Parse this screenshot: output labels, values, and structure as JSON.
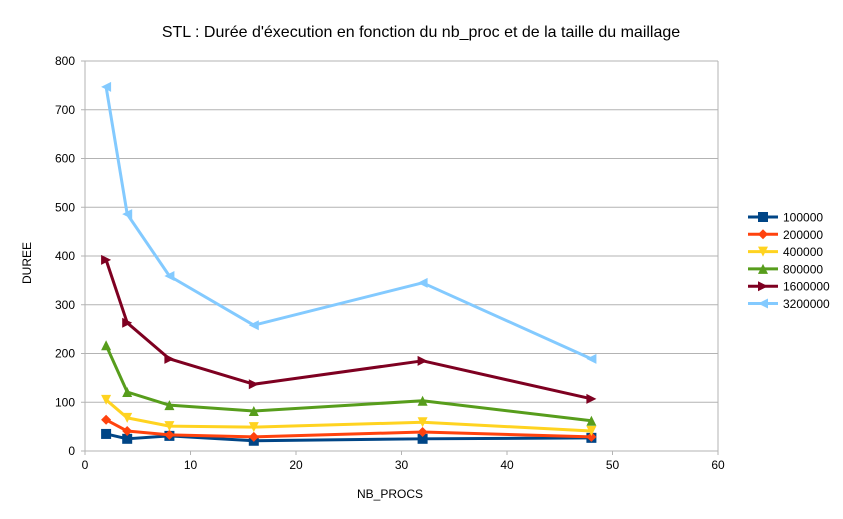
{
  "chart_data": {
    "type": "line",
    "title": "STL : Durée d'éxecution en fonction du nb_proc et de la taille du maillage",
    "xlabel": "NB_PROCS",
    "ylabel": "DUREE",
    "xlim": [
      0,
      60
    ],
    "ylim": [
      0,
      800
    ],
    "xticks": [
      0,
      10,
      20,
      30,
      40,
      50,
      60
    ],
    "yticks": [
      0,
      100,
      200,
      300,
      400,
      500,
      600,
      700,
      800
    ],
    "grid": "horizontal",
    "legend_position": "right",
    "x": [
      2,
      4,
      8,
      16,
      32,
      48
    ],
    "series": [
      {
        "name": "100000",
        "color": "#004586",
        "marker": "square",
        "values": [
          35,
          25,
          31,
          21,
          25,
          27
        ]
      },
      {
        "name": "200000",
        "color": "#ff420e",
        "marker": "diamond",
        "values": [
          64,
          41,
          33,
          29,
          39,
          29
        ]
      },
      {
        "name": "400000",
        "color": "#ffd320",
        "marker": "triangle-down",
        "values": [
          105,
          68,
          51,
          49,
          59,
          41
        ]
      },
      {
        "name": "800000",
        "color": "#579d1c",
        "marker": "triangle-up",
        "values": [
          217,
          121,
          94,
          82,
          103,
          62
        ]
      },
      {
        "name": "1600000",
        "color": "#7e0021",
        "marker": "triangle-right",
        "values": [
          392,
          263,
          189,
          137,
          185,
          107
        ]
      },
      {
        "name": "3200000",
        "color": "#83caff",
        "marker": "triangle-left",
        "values": [
          747,
          486,
          359,
          258,
          345,
          189
        ]
      }
    ]
  }
}
